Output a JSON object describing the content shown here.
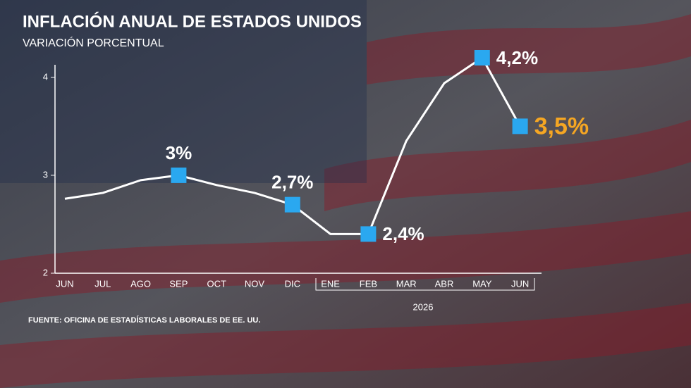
{
  "chart_data": {
    "type": "line",
    "title": "INFLACIÓN ANUAL DE ESTADOS UNIDOS",
    "subtitle": "VARIACIÓN PORCENTUAL",
    "source": "FUENTE: OFICINA DE ESTADÍSTICAS LABORALES DE EE. UU.",
    "year_label": "2026",
    "categories": [
      "JUN",
      "JUL",
      "AGO",
      "SEP",
      "OCT",
      "NOV",
      "DIC",
      "ENE",
      "FEB",
      "MAR",
      "ABR",
      "MAY",
      "JUN"
    ],
    "values": [
      2.76,
      2.82,
      2.95,
      3,
      2.9,
      2.82,
      2.7,
      2.4,
      2.4,
      3.35,
      3.94,
      4.2,
      3.5
    ],
    "value_labels": [
      null,
      null,
      null,
      "3%",
      null,
      null,
      "2,7%",
      null,
      "2,4%",
      null,
      null,
      "4,2%",
      "3,5%"
    ],
    "color": "#ffffff",
    "marker_color": "#2aa8f0",
    "highlight_color": "#f5a623",
    "ylim": [
      2,
      4.2
    ],
    "yticks": [
      2,
      3,
      4
    ],
    "grid": false
  }
}
